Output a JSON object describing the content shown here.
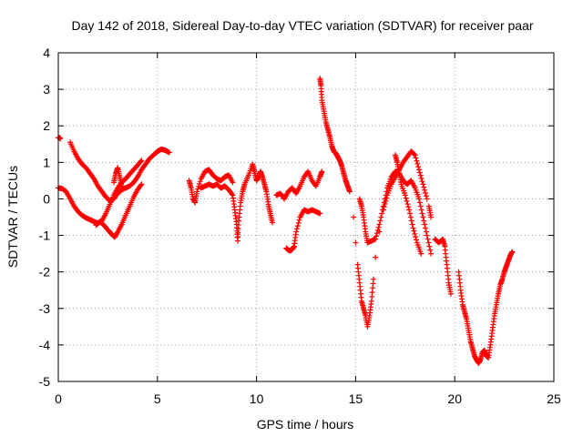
{
  "chart_data": {
    "type": "scatter",
    "title": "Day 142 of 2018, Sidereal Day-to-day VTEC variation (SDTVAR) for receiver paar",
    "xlabel": "GPS time / hours",
    "ylabel": "SDTVAR / TECUs",
    "xlim": [
      0,
      25
    ],
    "ylim": [
      -5,
      4
    ],
    "xticks": [
      "0",
      "5",
      "10",
      "15",
      "20",
      "25"
    ],
    "yticks": [
      "-5",
      "-4",
      "-3",
      "-2",
      "-1",
      "0",
      "1",
      "2",
      "3",
      "4"
    ],
    "grid": true,
    "marker": "+",
    "series": [
      {
        "name": "SDTVAR",
        "color": "#ff0000",
        "points": [
          [
            0.0,
            1.68
          ],
          [
            0.05,
            1.68
          ],
          [
            0.1,
            1.65
          ],
          [
            0.0,
            0.3
          ],
          [
            0.2,
            0.28
          ],
          [
            0.4,
            0.2
          ],
          [
            0.6,
            0.0
          ],
          [
            0.8,
            -0.2
          ],
          [
            1.0,
            -0.35
          ],
          [
            1.2,
            -0.45
          ],
          [
            1.4,
            -0.52
          ],
          [
            1.6,
            -0.57
          ],
          [
            1.8,
            -0.62
          ],
          [
            2.0,
            -0.67
          ],
          [
            2.2,
            -0.6
          ],
          [
            2.4,
            -0.4
          ],
          [
            2.6,
            -0.15
          ],
          [
            2.8,
            0.1
          ],
          [
            3.0,
            0.3
          ],
          [
            3.2,
            0.45
          ],
          [
            3.4,
            0.55
          ],
          [
            3.6,
            0.68
          ],
          [
            3.8,
            0.8
          ],
          [
            4.0,
            0.92
          ],
          [
            4.2,
            1.05
          ],
          [
            0.6,
            1.55
          ],
          [
            0.8,
            1.3
          ],
          [
            1.0,
            1.1
          ],
          [
            1.2,
            0.95
          ],
          [
            1.4,
            0.85
          ],
          [
            1.6,
            0.7
          ],
          [
            1.8,
            0.55
          ],
          [
            2.0,
            0.35
          ],
          [
            2.2,
            0.2
          ],
          [
            2.4,
            0.05
          ],
          [
            2.6,
            -0.05
          ],
          [
            2.8,
            0.0
          ],
          [
            3.0,
            0.15
          ],
          [
            3.2,
            0.25
          ],
          [
            3.4,
            0.3
          ],
          [
            3.6,
            0.35
          ],
          [
            3.8,
            0.45
          ],
          [
            4.0,
            0.6
          ],
          [
            4.2,
            0.8
          ],
          [
            4.4,
            0.95
          ],
          [
            4.6,
            1.1
          ],
          [
            4.8,
            1.2
          ],
          [
            5.0,
            1.3
          ],
          [
            5.2,
            1.36
          ],
          [
            5.4,
            1.33
          ],
          [
            5.6,
            1.27
          ],
          [
            1.9,
            -0.72
          ],
          [
            2.1,
            -0.62
          ],
          [
            2.3,
            -0.72
          ],
          [
            2.5,
            -0.85
          ],
          [
            2.7,
            -0.97
          ],
          [
            2.85,
            -1.05
          ],
          [
            3.0,
            -0.9
          ],
          [
            3.2,
            -0.7
          ],
          [
            3.4,
            -0.45
          ],
          [
            3.6,
            -0.2
          ],
          [
            3.8,
            0.05
          ],
          [
            4.0,
            0.25
          ],
          [
            4.2,
            0.4
          ],
          [
            2.8,
            0.45
          ],
          [
            2.9,
            0.7
          ],
          [
            3.0,
            0.85
          ],
          [
            3.1,
            0.6
          ],
          [
            3.2,
            0.35
          ],
          [
            6.6,
            0.5
          ],
          [
            6.7,
            0.3
          ],
          [
            6.8,
            0.0
          ],
          [
            6.9,
            -0.1
          ],
          [
            7.0,
            0.2
          ],
          [
            7.2,
            0.55
          ],
          [
            7.4,
            0.75
          ],
          [
            7.6,
            0.8
          ],
          [
            7.8,
            0.65
          ],
          [
            8.0,
            0.55
          ],
          [
            8.2,
            0.5
          ],
          [
            8.4,
            0.6
          ],
          [
            8.6,
            0.65
          ],
          [
            8.8,
            0.45
          ],
          [
            7.2,
            0.3
          ],
          [
            7.4,
            0.35
          ],
          [
            7.6,
            0.4
          ],
          [
            7.8,
            0.35
          ],
          [
            8.0,
            0.4
          ],
          [
            8.2,
            0.3
          ],
          [
            8.4,
            0.35
          ],
          [
            8.6,
            0.25
          ],
          [
            8.8,
            0.1
          ],
          [
            8.9,
            -0.3
          ],
          [
            9.0,
            -0.7
          ],
          [
            9.05,
            -1.15
          ],
          [
            9.1,
            -0.6
          ],
          [
            9.2,
            -0.1
          ],
          [
            9.3,
            0.2
          ],
          [
            9.4,
            0.4
          ],
          [
            9.6,
            0.65
          ],
          [
            9.8,
            0.95
          ],
          [
            9.9,
            0.75
          ],
          [
            10.0,
            0.5
          ],
          [
            10.1,
            0.6
          ],
          [
            10.2,
            0.75
          ],
          [
            10.3,
            0.6
          ],
          [
            10.4,
            0.4
          ],
          [
            10.5,
            0.2
          ],
          [
            10.6,
            -0.15
          ],
          [
            10.7,
            -0.4
          ],
          [
            10.8,
            -0.65
          ],
          [
            11.0,
            0.1
          ],
          [
            11.2,
            0.15
          ],
          [
            11.4,
            0.0
          ],
          [
            11.6,
            0.2
          ],
          [
            11.8,
            0.3
          ],
          [
            12.0,
            0.15
          ],
          [
            12.2,
            0.35
          ],
          [
            12.4,
            0.6
          ],
          [
            12.6,
            0.75
          ],
          [
            12.8,
            0.5
          ],
          [
            13.0,
            0.35
          ],
          [
            13.2,
            0.6
          ],
          [
            13.3,
            0.75
          ],
          [
            11.5,
            -1.35
          ],
          [
            11.6,
            -1.4
          ],
          [
            11.7,
            -1.42
          ],
          [
            11.8,
            -1.38
          ],
          [
            11.9,
            -1.3
          ],
          [
            12.0,
            -0.9
          ],
          [
            12.2,
            -0.5
          ],
          [
            12.4,
            -0.3
          ],
          [
            12.6,
            -0.35
          ],
          [
            12.8,
            -0.3
          ],
          [
            13.0,
            -0.35
          ],
          [
            13.2,
            -0.4
          ],
          [
            13.2,
            3.3
          ],
          [
            13.25,
            3.1
          ],
          [
            13.3,
            2.7
          ],
          [
            13.4,
            2.4
          ],
          [
            13.5,
            2.1
          ],
          [
            13.6,
            1.9
          ],
          [
            13.7,
            1.7
          ],
          [
            13.8,
            1.45
          ],
          [
            13.9,
            1.3
          ],
          [
            14.0,
            1.25
          ],
          [
            14.1,
            1.15
          ],
          [
            14.2,
            1.05
          ],
          [
            14.3,
            0.9
          ],
          [
            14.4,
            0.7
          ],
          [
            14.5,
            0.5
          ],
          [
            14.6,
            0.35
          ],
          [
            14.7,
            0.2
          ],
          [
            14.9,
            -0.5
          ],
          [
            15.0,
            -1.2
          ],
          [
            15.1,
            -1.8
          ],
          [
            15.2,
            -2.3
          ],
          [
            15.3,
            -2.8
          ],
          [
            15.4,
            -3.0
          ],
          [
            15.5,
            -3.2
          ],
          [
            15.6,
            -3.5
          ],
          [
            15.7,
            -3.2
          ],
          [
            15.8,
            -2.8
          ],
          [
            15.9,
            -2.2
          ],
          [
            16.0,
            -1.6
          ],
          [
            16.2,
            -0.9
          ],
          [
            16.4,
            -0.3
          ],
          [
            16.6,
            0.1
          ],
          [
            16.8,
            0.4
          ],
          [
            17.0,
            0.6
          ],
          [
            17.2,
            0.8
          ],
          [
            17.4,
            1.0
          ],
          [
            17.6,
            1.15
          ],
          [
            17.8,
            1.3
          ],
          [
            18.0,
            1.2
          ],
          [
            18.2,
            0.8
          ],
          [
            18.4,
            0.4
          ],
          [
            18.6,
            0.0
          ],
          [
            15.2,
            0.0
          ],
          [
            15.3,
            -0.2
          ],
          [
            15.4,
            -0.5
          ],
          [
            15.5,
            -0.9
          ],
          [
            15.6,
            -1.2
          ],
          [
            15.8,
            -1.15
          ],
          [
            16.0,
            -1.1
          ],
          [
            16.2,
            -0.7
          ],
          [
            16.4,
            -0.2
          ],
          [
            16.6,
            0.3
          ],
          [
            16.8,
            0.6
          ],
          [
            17.0,
            0.75
          ],
          [
            17.2,
            0.7
          ],
          [
            17.4,
            0.5
          ],
          [
            17.6,
            0.4
          ],
          [
            17.8,
            0.5
          ],
          [
            18.0,
            0.3
          ],
          [
            18.2,
            0.0
          ],
          [
            18.4,
            -0.5
          ],
          [
            18.6,
            -1.0
          ],
          [
            18.8,
            -1.5
          ],
          [
            17.0,
            1.2
          ],
          [
            17.1,
            1.0
          ],
          [
            17.2,
            0.7
          ],
          [
            17.3,
            0.4
          ],
          [
            17.5,
            0.1
          ],
          [
            17.7,
            -0.3
          ],
          [
            17.9,
            -0.8
          ],
          [
            18.1,
            -1.2
          ],
          [
            18.3,
            -1.5
          ],
          [
            18.7,
            -0.2
          ],
          [
            18.8,
            -0.5
          ],
          [
            19.0,
            -1.1
          ],
          [
            19.2,
            -1.2
          ],
          [
            19.4,
            -1.1
          ],
          [
            19.5,
            -1.3
          ],
          [
            19.6,
            -1.8
          ],
          [
            19.7,
            -2.3
          ],
          [
            19.8,
            -2.6
          ],
          [
            20.2,
            -2.0
          ],
          [
            20.3,
            -2.5
          ],
          [
            20.4,
            -2.9
          ],
          [
            20.5,
            -3.1
          ],
          [
            20.6,
            -3.3
          ],
          [
            20.7,
            -3.6
          ],
          [
            20.8,
            -3.9
          ],
          [
            20.9,
            -4.1
          ],
          [
            21.0,
            -4.3
          ],
          [
            21.1,
            -4.4
          ],
          [
            21.2,
            -4.5
          ],
          [
            21.3,
            -4.4
          ],
          [
            21.4,
            -4.2
          ],
          [
            21.5,
            -4.15
          ],
          [
            21.6,
            -4.3
          ],
          [
            21.7,
            -4.35
          ],
          [
            21.8,
            -4.0
          ],
          [
            21.9,
            -3.6
          ],
          [
            22.0,
            -3.2
          ],
          [
            22.1,
            -2.9
          ],
          [
            22.2,
            -2.6
          ],
          [
            22.3,
            -2.35
          ],
          [
            22.4,
            -2.2
          ],
          [
            22.5,
            -2.0
          ],
          [
            22.6,
            -1.85
          ],
          [
            22.7,
            -1.7
          ],
          [
            22.8,
            -1.55
          ],
          [
            22.9,
            -1.45
          ]
        ]
      }
    ]
  }
}
